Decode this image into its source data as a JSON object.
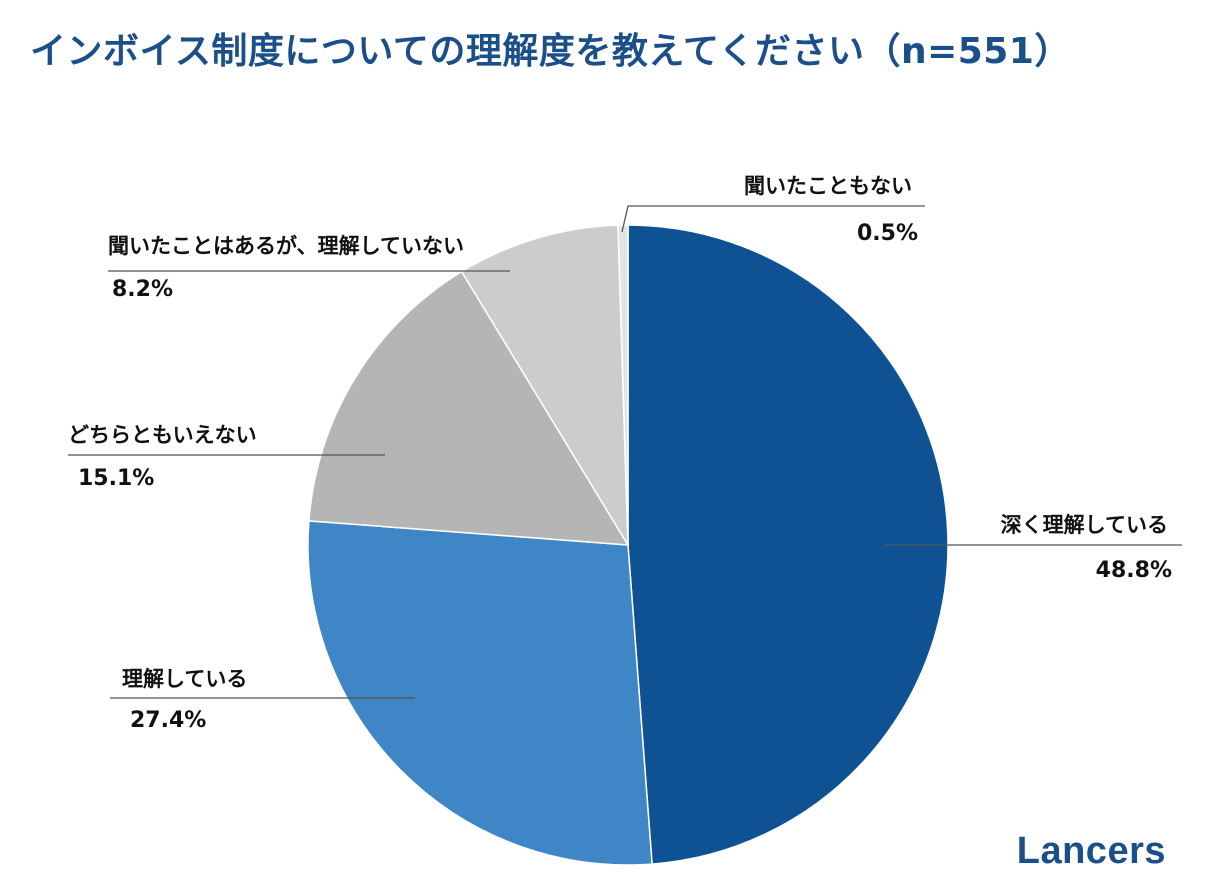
{
  "chart_data": {
    "type": "pie",
    "title": "インボイス制度についての理解度を教えてください（n=551）",
    "slices": [
      {
        "name": "深く理解している",
        "value": 48.8,
        "label": "48.8%",
        "color": "#0e5294"
      },
      {
        "name": "理解している",
        "value": 27.4,
        "label": "27.4%",
        "color": "#3f86c6"
      },
      {
        "name": "どちらともいえない",
        "value": 15.1,
        "label": "15.1%",
        "color": "#b5b5b5"
      },
      {
        "name": "聞いたことはあるが、理解していない",
        "value": 8.2,
        "label": "8.2%",
        "color": "#cccccc"
      },
      {
        "name": "聞いたこともない",
        "value": 0.5,
        "label": "0.5%",
        "color": "#e4e4e4"
      }
    ],
    "start": "12 o'clock",
    "direction": "clockwise",
    "legend": "none"
  },
  "logo": "Lancers"
}
